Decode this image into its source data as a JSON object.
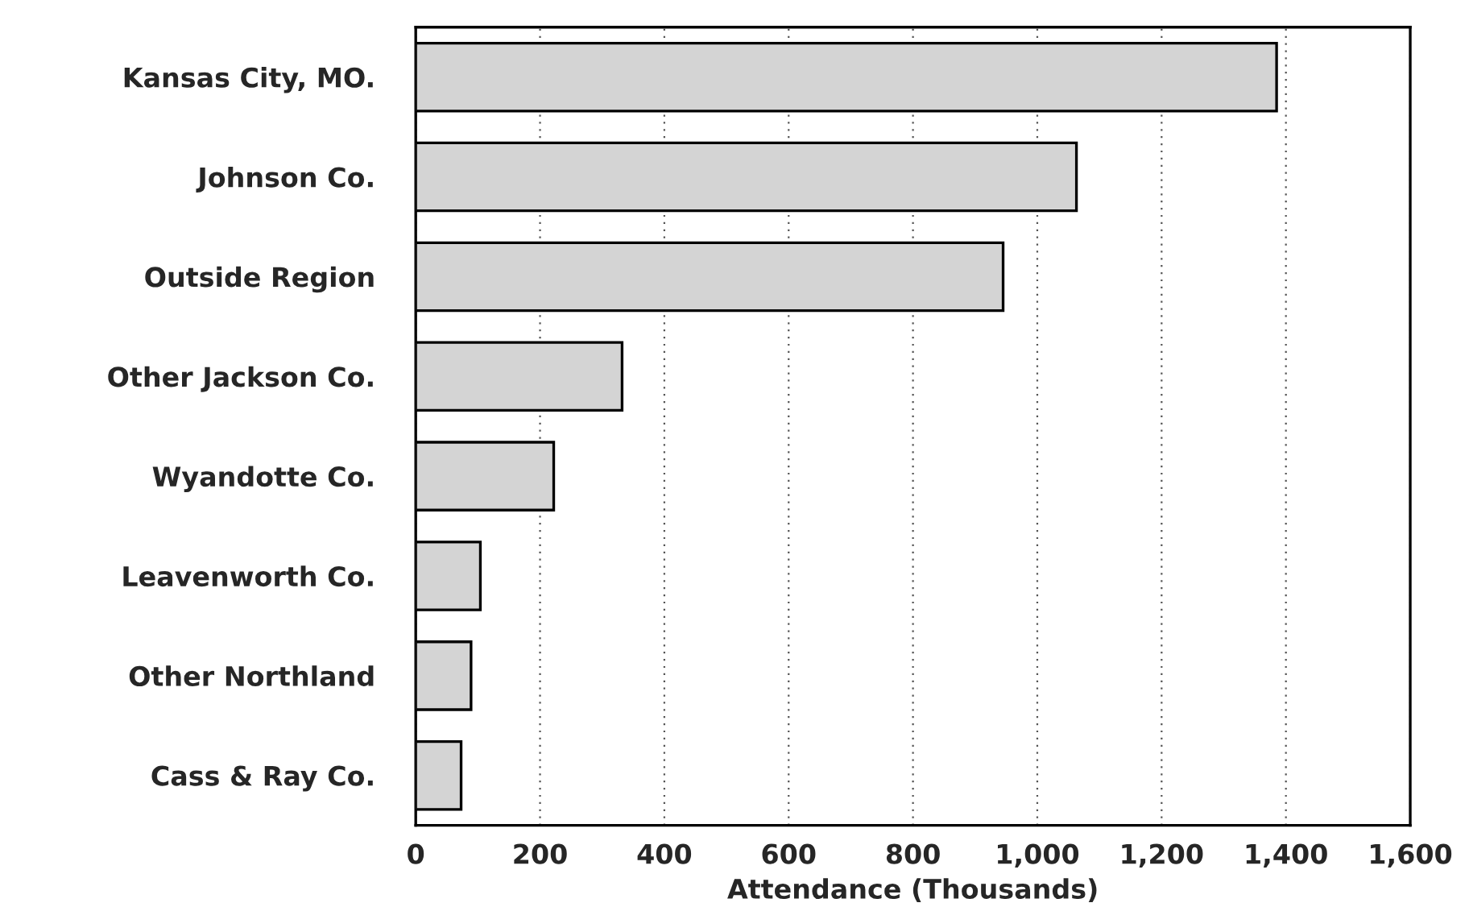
{
  "chart_data": {
    "type": "bar",
    "orientation": "horizontal",
    "xlabel": "Attendance (Thousands)",
    "categories": [
      "Kansas City, MO.",
      "Johnson Co.",
      "Outside Region",
      "Other Jackson Co.",
      "Wyandotte Co.",
      "Leavenworth Co.",
      "Other Northland",
      "Cass & Ray Co."
    ],
    "values": [
      1385,
      1063,
      945,
      332,
      222,
      104,
      89,
      73
    ],
    "color": "#d4d4d4",
    "xlim": [
      0,
      1600
    ],
    "xticks": [
      0,
      200,
      400,
      600,
      800,
      {
        "value": 1000,
        "label": "1,000"
      },
      {
        "value": 1200,
        "label": "1,200"
      },
      {
        "value": 1400,
        "label": "1,400"
      },
      {
        "value": 1600,
        "label": "1,600"
      }
    ],
    "grid": "x"
  }
}
